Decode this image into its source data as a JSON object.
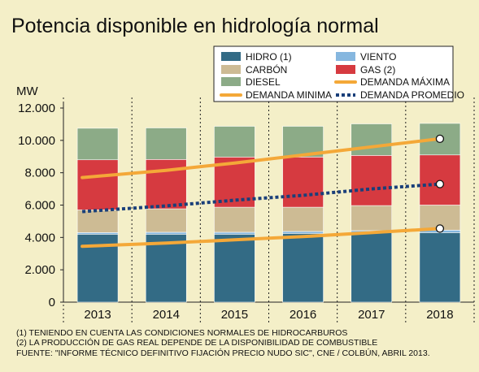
{
  "chart_data": {
    "type": "bar",
    "title": "Potencia  disponible en hidrología normal",
    "ylabel": "MW",
    "ylim": [
      0,
      12000
    ],
    "yticks": [
      "0",
      "2.000",
      "4.000",
      "6.000",
      "8.000",
      "10.000",
      "12.000"
    ],
    "ytick_values": [
      0,
      2000,
      4000,
      6000,
      8000,
      10000,
      12000
    ],
    "categories": [
      "2013",
      "2014",
      "2015",
      "2016",
      "2017",
      "2018"
    ],
    "stacked": true,
    "series": [
      {
        "name": "HIDRO (1)",
        "key": "hidro",
        "color": "#336b85",
        "values": [
          4200,
          4200,
          4200,
          4250,
          4300,
          4300
        ]
      },
      {
        "name": "VIENTO",
        "key": "viento",
        "color": "#86b7df",
        "values": [
          100,
          120,
          120,
          120,
          120,
          150
        ]
      },
      {
        "name": "CARBÓN",
        "key": "carbon",
        "color": "#cdbb94",
        "values": [
          1400,
          1450,
          1550,
          1500,
          1550,
          1550
        ]
      },
      {
        "name": "GAS (2)",
        "key": "gas",
        "color": "#d63a40",
        "values": [
          3100,
          3050,
          3100,
          3100,
          3100,
          3100
        ]
      },
      {
        "name": "DIESEL",
        "key": "diesel",
        "color": "#8cab87",
        "values": [
          1950,
          1950,
          1900,
          1900,
          1950,
          1950
        ]
      }
    ],
    "lines": [
      {
        "name": "DEMANDA MÁXIMA",
        "key": "demanda_maxima",
        "color": "#f4a838",
        "style": "solid",
        "values": [
          7700,
          8150,
          8600,
          9100,
          9600,
          10100
        ]
      },
      {
        "name": "DEMANDA PROMEDIO",
        "key": "demanda_promedio",
        "color": "#1a3f7a",
        "style": "dotted",
        "values": [
          5600,
          5950,
          6300,
          6600,
          7000,
          7300
        ]
      },
      {
        "name": "DEMANDA MINIMA",
        "key": "demanda_minima",
        "color": "#f4a838",
        "style": "solid",
        "values": [
          3450,
          3650,
          3850,
          4050,
          4300,
          4550
        ]
      }
    ],
    "legend_order": [
      "hidro",
      "viento",
      "carbon",
      "gas",
      "diesel",
      "demanda_maxima",
      "demanda_minima",
      "demanda_promedio"
    ],
    "legend_position": "top-right",
    "grid": false
  },
  "notes": [
    "(1) TENIENDO EN CUENTA LAS CONDICIONES NORMALES DE HIDROCARBUROS",
    "(2) LA PRODUCCIÓN DE GAS REAL DEPENDE DE LA DISPONIBILIDAD DE COMBUSTIBLE",
    "FUENTE: \"INFORME TÉCNICO DEFINITIVO FIJACIÓN PRECIO NUDO SIC\", CNE / COLBÚN, ABRIL 2013."
  ],
  "colors": {
    "background": "#f4efc8",
    "legend_background": "#ffffff"
  }
}
